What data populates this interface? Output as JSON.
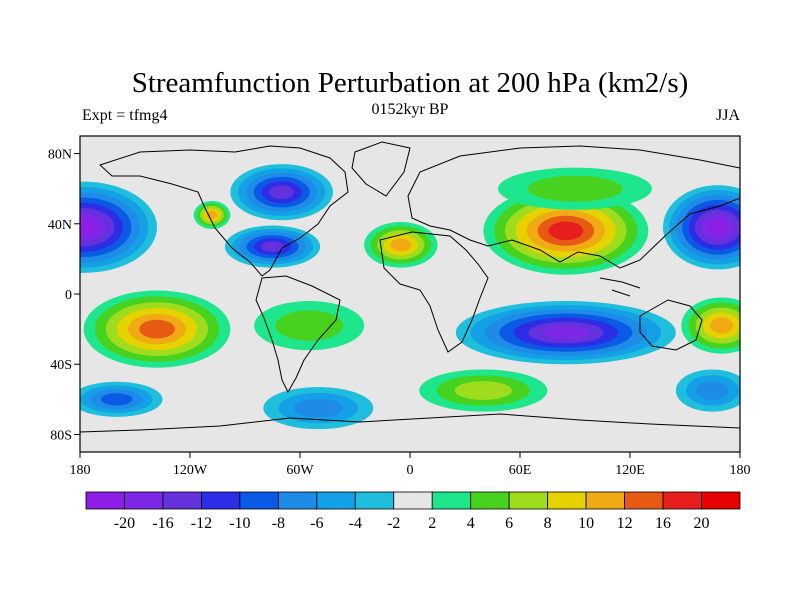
{
  "title": "Streamfunction Perturbation at 200 hPa (km2/s)",
  "subtitle_left": "Expt = tfmg4",
  "subtitle_center": "0152kyr BP",
  "subtitle_right": "JJA",
  "lat_ticks": [
    "80N",
    "40N",
    "0",
    "40S",
    "80S"
  ],
  "lon_ticks": [
    "180",
    "120W",
    "60W",
    "0",
    "60E",
    "120E",
    "180"
  ],
  "colorbar": {
    "labels": [
      "-20",
      "-16",
      "-12",
      "-10",
      "-8",
      "-6",
      "-4",
      "-2",
      "2",
      "4",
      "6",
      "8",
      "10",
      "12",
      "16",
      "20"
    ],
    "colors": [
      "#8c1ee6",
      "#7d28e6",
      "#6432dc",
      "#2d2de6",
      "#0a5ae6",
      "#1e8ce6",
      "#14a0e6",
      "#1ebedc",
      "#e6e6e6",
      "#1ee68c",
      "#46d21e",
      "#a0dc1e",
      "#e6d200",
      "#f0aa14",
      "#e65a14",
      "#e61e1e",
      "#e60000"
    ]
  },
  "map": {
    "lon_range": [
      -180,
      180
    ],
    "lat_range": [
      -90,
      90
    ],
    "contour_blobs": [
      {
        "lon": -178,
        "lat": 38,
        "rx": 40,
        "ry": 26,
        "level": 0
      },
      {
        "lon": 168,
        "lat": 38,
        "rx": 30,
        "ry": 24,
        "level": 0
      },
      {
        "lon": -70,
        "lat": 58,
        "rx": 28,
        "ry": 16,
        "level": 2
      },
      {
        "lon": -75,
        "lat": 27,
        "rx": 26,
        "ry": 12,
        "level": 2
      },
      {
        "lon": -108,
        "lat": 45,
        "rx": 10,
        "ry": 8,
        "level": 13
      },
      {
        "lon": -5,
        "lat": 28,
        "rx": 20,
        "ry": 13,
        "level": 13
      },
      {
        "lon": 85,
        "lat": 36,
        "rx": 45,
        "ry": 25,
        "level": 15
      },
      {
        "lon": 90,
        "lat": 60,
        "rx": 42,
        "ry": 12,
        "level": 10
      },
      {
        "lon": -138,
        "lat": -20,
        "rx": 40,
        "ry": 22,
        "level": 14
      },
      {
        "lon": 85,
        "lat": -22,
        "rx": 60,
        "ry": 18,
        "level": 1
      },
      {
        "lon": 40,
        "lat": -55,
        "rx": 35,
        "ry": 12,
        "level": 11
      },
      {
        "lon": -50,
        "lat": -65,
        "rx": 30,
        "ry": 12,
        "level": 5
      },
      {
        "lon": -160,
        "lat": -60,
        "rx": 25,
        "ry": 10,
        "level": 4
      },
      {
        "lon": 165,
        "lat": -55,
        "rx": 20,
        "ry": 12,
        "level": 5
      },
      {
        "lon": 170,
        "lat": -18,
        "rx": 22,
        "ry": 16,
        "level": 13
      },
      {
        "lon": -55,
        "lat": -18,
        "rx": 30,
        "ry": 14,
        "level": 10
      }
    ]
  }
}
